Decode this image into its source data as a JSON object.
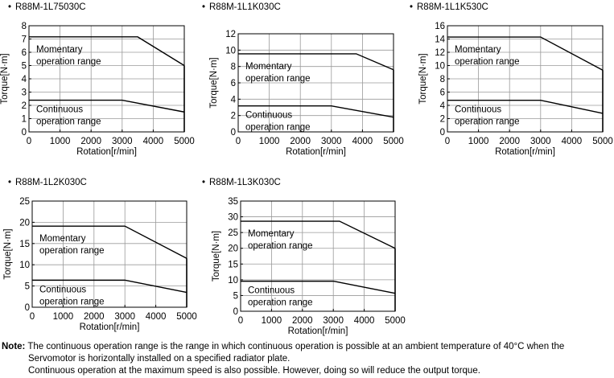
{
  "chart_data": [
    {
      "type": "line",
      "title": "R88M-1L75030C",
      "xlabel": "Rotation[r/min]",
      "ylabel": "Torque[N·m]",
      "xlim": [
        0,
        5000
      ],
      "ylim": [
        0,
        8
      ],
      "xticks": [
        0,
        1000,
        2000,
        3000,
        4000,
        5000
      ],
      "yticks": [
        0,
        1,
        2,
        3,
        4,
        5,
        6,
        7,
        8
      ],
      "grid": true,
      "series": [
        {
          "name": "Momentary operation range",
          "x": [
            0,
            3500,
            5000
          ],
          "y": [
            7.16,
            7.16,
            5.0
          ]
        },
        {
          "name": "Continuous operation range",
          "x": [
            0,
            3000,
            5000
          ],
          "y": [
            2.39,
            2.39,
            1.5
          ]
        }
      ],
      "momentary_label": [
        "Momentary",
        "operation range"
      ],
      "continuous_label": [
        "Continuous",
        "operation range"
      ]
    },
    {
      "type": "line",
      "title": "R88M-1L1K030C",
      "xlabel": "Rotation[r/min]",
      "ylabel": "Torque[N·m]",
      "xlim": [
        0,
        5000
      ],
      "ylim": [
        0,
        12
      ],
      "xticks": [
        0,
        1000,
        2000,
        3000,
        4000,
        5000
      ],
      "yticks": [
        0,
        2,
        4,
        6,
        8,
        10,
        12
      ],
      "grid": true,
      "series": [
        {
          "name": "Momentary operation range",
          "x": [
            0,
            3800,
            5000
          ],
          "y": [
            9.55,
            9.55,
            7.6
          ]
        },
        {
          "name": "Continuous operation range",
          "x": [
            0,
            3000,
            5000
          ],
          "y": [
            3.18,
            3.18,
            1.8
          ]
        }
      ],
      "momentary_label": [
        "Momentary",
        "operation range"
      ],
      "continuous_label": [
        "Continuous",
        "operation range"
      ]
    },
    {
      "type": "line",
      "title": "R88M-1L1K530C",
      "xlabel": "Rotation[r/min]",
      "ylabel": "Torque[N·m]",
      "xlim": [
        0,
        5000
      ],
      "ylim": [
        0,
        16
      ],
      "xticks": [
        0,
        1000,
        2000,
        3000,
        4000,
        5000
      ],
      "yticks": [
        0,
        2,
        4,
        6,
        8,
        10,
        12,
        14,
        16
      ],
      "grid": true,
      "series": [
        {
          "name": "Momentary operation range",
          "x": [
            0,
            3000,
            5000
          ],
          "y": [
            14.3,
            14.3,
            9.3
          ]
        },
        {
          "name": "Continuous operation range",
          "x": [
            0,
            3000,
            5000
          ],
          "y": [
            4.77,
            4.77,
            2.8
          ]
        }
      ],
      "momentary_label": [
        "Momentary",
        "operation range"
      ],
      "continuous_label": [
        "Continuous",
        "operation range"
      ]
    },
    {
      "type": "line",
      "title": "R88M-1L2K030C",
      "xlabel": "Rotation[r/min]",
      "ylabel": "Torque[N·m]",
      "xlim": [
        0,
        5000
      ],
      "ylim": [
        0,
        25
      ],
      "xticks": [
        0,
        1000,
        2000,
        3000,
        4000,
        5000
      ],
      "yticks": [
        0,
        5,
        10,
        15,
        20,
        25
      ],
      "grid": true,
      "series": [
        {
          "name": "Momentary operation range",
          "x": [
            0,
            3000,
            5000
          ],
          "y": [
            19.1,
            19.1,
            11.5
          ]
        },
        {
          "name": "Continuous operation range",
          "x": [
            0,
            3000,
            5000
          ],
          "y": [
            6.37,
            6.37,
            3.5
          ]
        }
      ],
      "momentary_label": [
        "Momentary",
        "operation range"
      ],
      "continuous_label": [
        "Continuous",
        "operation range"
      ]
    },
    {
      "type": "line",
      "title": "R88M-1L3K030C",
      "xlabel": "Rotation[r/min]",
      "ylabel": "Torque[N·m]",
      "xlim": [
        0,
        5000
      ],
      "ylim": [
        0,
        35
      ],
      "xticks": [
        0,
        1000,
        2000,
        3000,
        4000,
        5000
      ],
      "yticks": [
        0,
        5,
        10,
        15,
        20,
        25,
        30,
        35
      ],
      "grid": true,
      "series": [
        {
          "name": "Momentary operation range",
          "x": [
            0,
            3200,
            5000
          ],
          "y": [
            28.6,
            28.6,
            20.0
          ]
        },
        {
          "name": "Continuous operation range",
          "x": [
            0,
            3000,
            5000
          ],
          "y": [
            9.55,
            9.55,
            5.7
          ]
        }
      ],
      "momentary_label": [
        "Momentary",
        "operation range"
      ],
      "continuous_label": [
        "Continuous",
        "operation range"
      ]
    }
  ],
  "bullet": "•",
  "note": {
    "label": "Note:",
    "line1": " The continuous operation range is the range in which continuous operation is possible at an ambient temperature of 40°C when the",
    "line2": "Servomotor is horizontally installed on a specified radiator plate.",
    "line3": "Continuous operation at the maximum speed is also possible. However, doing so will reduce the output torque."
  }
}
